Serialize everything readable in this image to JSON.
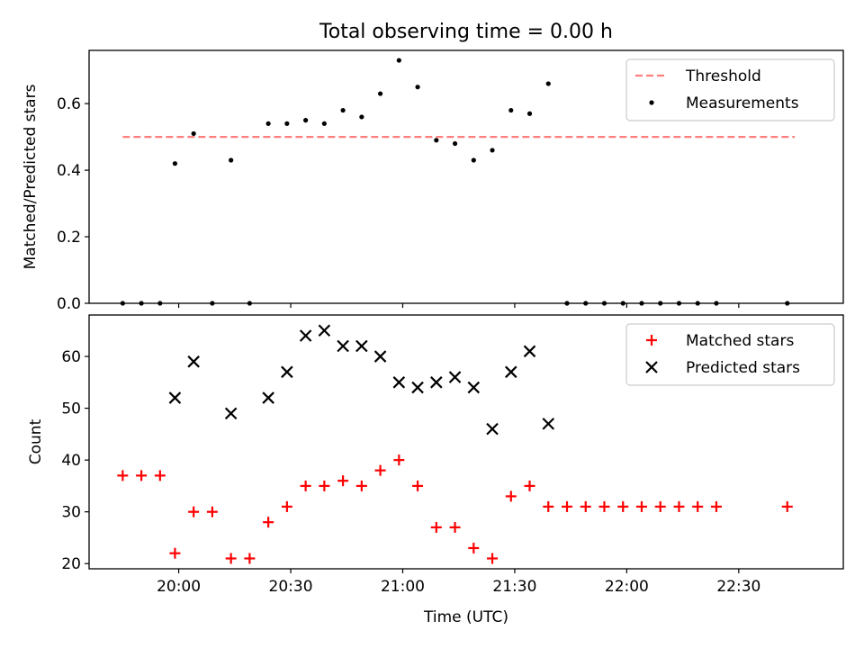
{
  "figure": {
    "title": "Total observing time = 0.00 h"
  },
  "chart_data": [
    {
      "type": "scatter",
      "title": "Total observing time = 0.00 h",
      "xlabel": "",
      "ylabel": "Matched/Predicted stars",
      "xlim": [
        "19:36",
        "22:58"
      ],
      "ylim": [
        0,
        0.76
      ],
      "yticks": [
        0.0,
        0.2,
        0.4,
        0.6
      ],
      "ytick_labels": [
        "0.0",
        "0.2",
        "0.4",
        "0.6"
      ],
      "xticks": [
        "20:00",
        "20:30",
        "21:00",
        "21:30",
        "22:00",
        "22:30"
      ],
      "show_xtick_labels": false,
      "grid": false,
      "legend_position": "top-right",
      "series": [
        {
          "name": "Threshold",
          "kind": "dashed-line",
          "color": "#ff7f7f",
          "x": [
            "19:45",
            "22:45"
          ],
          "y": [
            0.5,
            0.5
          ]
        },
        {
          "name": "Measurements",
          "kind": "points",
          "color": "#000000",
          "x": [
            "19:45",
            "19:50",
            "19:55",
            "19:59",
            "20:04",
            "20:09",
            "20:14",
            "20:19",
            "20:24",
            "20:29",
            "20:34",
            "20:39",
            "20:44",
            "20:49",
            "20:54",
            "20:59",
            "21:04",
            "21:09",
            "21:14",
            "21:19",
            "21:24",
            "21:29",
            "21:34",
            "21:39",
            "21:44",
            "21:49",
            "21:54",
            "21:59",
            "22:04",
            "22:09",
            "22:14",
            "22:19",
            "22:24",
            "22:43"
          ],
          "y": [
            0,
            0,
            0,
            0.42,
            0.51,
            0,
            0.43,
            0,
            0.54,
            0.54,
            0.55,
            0.54,
            0.58,
            0.56,
            0.63,
            0.73,
            0.65,
            0.49,
            0.48,
            0.43,
            0.46,
            0.58,
            0.57,
            0.66,
            0,
            0,
            0,
            0,
            0,
            0,
            0,
            0,
            0,
            0
          ]
        }
      ]
    },
    {
      "type": "scatter",
      "title": "",
      "xlabel": "Time (UTC)",
      "ylabel": "Count",
      "xlim": [
        "19:36",
        "22:58"
      ],
      "ylim": [
        19,
        68
      ],
      "yticks": [
        20,
        30,
        40,
        50,
        60
      ],
      "ytick_labels": [
        "20",
        "30",
        "40",
        "50",
        "60"
      ],
      "xticks": [
        "20:00",
        "20:30",
        "21:00",
        "21:30",
        "22:00",
        "22:30"
      ],
      "xtick_labels": [
        "20:00",
        "20:30",
        "21:00",
        "21:30",
        "22:00",
        "22:30"
      ],
      "show_xtick_labels": true,
      "grid": false,
      "legend_position": "top-right",
      "series": [
        {
          "name": "Matched stars",
          "kind": "plus",
          "color": "#ff0000",
          "x": [
            "19:45",
            "19:50",
            "19:55",
            "19:59",
            "20:04",
            "20:09",
            "20:14",
            "20:19",
            "20:24",
            "20:29",
            "20:34",
            "20:39",
            "20:44",
            "20:49",
            "20:54",
            "20:59",
            "21:04",
            "21:09",
            "21:14",
            "21:19",
            "21:24",
            "21:29",
            "21:34",
            "21:39",
            "21:44",
            "21:49",
            "21:54",
            "21:59",
            "22:04",
            "22:09",
            "22:14",
            "22:19",
            "22:24",
            "22:43"
          ],
          "y": [
            37,
            37,
            37,
            22,
            30,
            30,
            21,
            21,
            28,
            31,
            35,
            35,
            36,
            35,
            38,
            40,
            35,
            27,
            27,
            23,
            21,
            33,
            35,
            31,
            31,
            31,
            31,
            31,
            31,
            31,
            31,
            31,
            31,
            31
          ]
        },
        {
          "name": "Predicted stars",
          "kind": "x",
          "color": "#000000",
          "x": [
            "19:59",
            "20:04",
            "20:14",
            "20:24",
            "20:29",
            "20:34",
            "20:39",
            "20:44",
            "20:49",
            "20:54",
            "20:59",
            "21:04",
            "21:09",
            "21:14",
            "21:19",
            "21:24",
            "21:29",
            "21:34",
            "21:39"
          ],
          "y": [
            52,
            59,
            49,
            52,
            57,
            64,
            65,
            62,
            62,
            60,
            55,
            54,
            55,
            56,
            54,
            46,
            57,
            61,
            47
          ]
        }
      ]
    }
  ]
}
